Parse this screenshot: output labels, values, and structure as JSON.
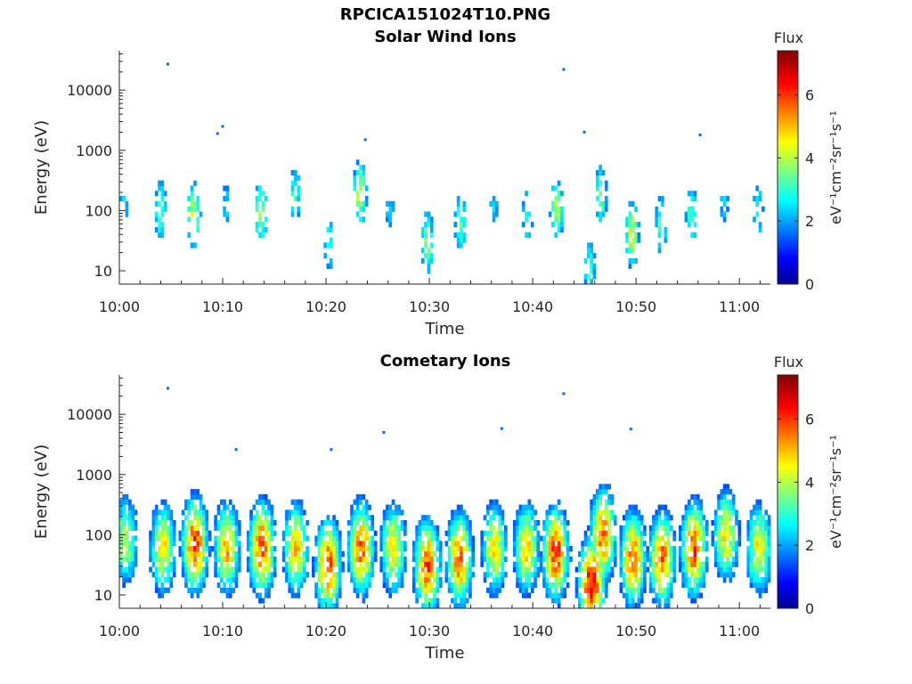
{
  "figure": {
    "title": "RPCICA151024T10.PNG",
    "colorbar_label": "Flux",
    "colorbar_units": "eV⁻¹cm⁻²sr⁻¹s⁻¹",
    "colormap": "jet"
  },
  "chart_data": [
    {
      "type": "heatmap",
      "title": "Solar Wind Ions",
      "xlabel": "Time",
      "ylabel": "Energy (eV)",
      "y_scale": "log",
      "x_range": [
        "10:00",
        "11:03"
      ],
      "y_range": [
        6,
        45000
      ],
      "x_ticks": [
        "10:00",
        "10:10",
        "10:20",
        "10:30",
        "10:40",
        "10:50",
        "11:00"
      ],
      "y_ticks": [
        "10",
        "100",
        "1000",
        "10000"
      ],
      "colorbar": {
        "label": "Flux",
        "range": [
          0,
          7.4
        ],
        "ticks": [
          "0",
          "2",
          "4",
          "6"
        ]
      },
      "bursts": [
        {
          "time_min": 0.5,
          "peak_energy_ev": 150,
          "peak_flux": 2.5
        },
        {
          "time_min": 4.0,
          "peak_energy_ev": 100,
          "peak_flux": 3.5
        },
        {
          "time_min": 7.2,
          "peak_energy_ev": 80,
          "peak_flux": 4.4
        },
        {
          "time_min": 10.3,
          "peak_energy_ev": 120,
          "peak_flux": 2.6
        },
        {
          "time_min": 13.7,
          "peak_energy_ev": 90,
          "peak_flux": 4.0
        },
        {
          "time_min": 17.0,
          "peak_energy_ev": 180,
          "peak_flux": 3.2
        },
        {
          "time_min": 20.3,
          "peak_energy_ev": 30,
          "peak_flux": 3.2
        },
        {
          "time_min": 23.3,
          "peak_energy_ev": 200,
          "peak_flux": 4.4
        },
        {
          "time_min": 26.2,
          "peak_energy_ev": 100,
          "peak_flux": 2.5
        },
        {
          "time_min": 29.8,
          "peak_energy_ev": 30,
          "peak_flux": 3.8
        },
        {
          "time_min": 33.0,
          "peak_energy_ev": 60,
          "peak_flux": 3.4
        },
        {
          "time_min": 36.2,
          "peak_energy_ev": 100,
          "peak_flux": 2.5
        },
        {
          "time_min": 39.5,
          "peak_energy_ev": 80,
          "peak_flux": 3.0
        },
        {
          "time_min": 42.3,
          "peak_energy_ev": 100,
          "peak_flux": 4.0
        },
        {
          "time_min": 45.5,
          "peak_energy_ev": 12,
          "peak_flux": 3.2
        },
        {
          "time_min": 46.6,
          "peak_energy_ev": 180,
          "peak_flux": 3.6
        },
        {
          "time_min": 49.6,
          "peak_energy_ev": 40,
          "peak_flux": 4.4
        },
        {
          "time_min": 52.4,
          "peak_energy_ev": 60,
          "peak_flux": 3.4
        },
        {
          "time_min": 55.4,
          "peak_energy_ev": 80,
          "peak_flux": 3.4
        },
        {
          "time_min": 58.5,
          "peak_energy_ev": 150,
          "peak_flux": 2.6
        },
        {
          "time_min": 61.8,
          "peak_energy_ev": 100,
          "peak_flux": 3.0
        }
      ],
      "isolated_points": [
        {
          "time": "10:04.7",
          "energy_ev": 27000
        },
        {
          "time": "10:09.5",
          "energy_ev": 1900
        },
        {
          "time": "10:10.0",
          "energy_ev": 2500
        },
        {
          "time": "10:23.8",
          "energy_ev": 1500
        },
        {
          "time": "10:43.0",
          "energy_ev": 22000
        },
        {
          "time": "10:45.0",
          "energy_ev": 2000
        },
        {
          "time": "10:56.2",
          "energy_ev": 1800
        }
      ]
    },
    {
      "type": "heatmap",
      "title": "Cometary Ions",
      "xlabel": "Time",
      "ylabel": "Energy (eV)",
      "y_scale": "log",
      "x_range": [
        "10:00",
        "11:03"
      ],
      "y_range": [
        6,
        45000
      ],
      "x_ticks": [
        "10:00",
        "10:10",
        "10:20",
        "10:30",
        "10:40",
        "10:50",
        "11:00"
      ],
      "y_ticks": [
        "10",
        "100",
        "1000",
        "10000"
      ],
      "colorbar": {
        "label": "Flux",
        "range": [
          0,
          7.4
        ],
        "ticks": [
          "0",
          "2",
          "4",
          "6"
        ]
      },
      "bursts": [
        {
          "time_min": 0.6,
          "peak_energy_ev": 80,
          "peak_flux": 4.2
        },
        {
          "time_min": 4.2,
          "peak_energy_ev": 60,
          "peak_flux": 4.8
        },
        {
          "time_min": 7.3,
          "peak_energy_ev": 70,
          "peak_flux": 6.2
        },
        {
          "time_min": 10.4,
          "peak_energy_ev": 60,
          "peak_flux": 5.2
        },
        {
          "time_min": 13.8,
          "peak_energy_ev": 60,
          "peak_flux": 6.0
        },
        {
          "time_min": 17.1,
          "peak_energy_ev": 60,
          "peak_flux": 5.0
        },
        {
          "time_min": 20.2,
          "peak_energy_ev": 30,
          "peak_flux": 6.0
        },
        {
          "time_min": 23.4,
          "peak_energy_ev": 60,
          "peak_flux": 5.8
        },
        {
          "time_min": 26.5,
          "peak_energy_ev": 60,
          "peak_flux": 4.8
        },
        {
          "time_min": 29.8,
          "peak_energy_ev": 30,
          "peak_flux": 6.0
        },
        {
          "time_min": 32.9,
          "peak_energy_ev": 40,
          "peak_flux": 5.8
        },
        {
          "time_min": 36.3,
          "peak_energy_ev": 60,
          "peak_flux": 4.8
        },
        {
          "time_min": 39.4,
          "peak_energy_ev": 60,
          "peak_flux": 5.0
        },
        {
          "time_min": 42.2,
          "peak_energy_ev": 50,
          "peak_flux": 6.2
        },
        {
          "time_min": 45.7,
          "peak_energy_ev": 15,
          "peak_flux": 6.6
        },
        {
          "time_min": 46.8,
          "peak_energy_ev": 100,
          "peak_flux": 5.8
        },
        {
          "time_min": 49.7,
          "peak_energy_ev": 40,
          "peak_flux": 5.8
        },
        {
          "time_min": 52.5,
          "peak_energy_ev": 40,
          "peak_flux": 5.8
        },
        {
          "time_min": 55.6,
          "peak_energy_ev": 60,
          "peak_flux": 6.0
        },
        {
          "time_min": 58.7,
          "peak_energy_ev": 100,
          "peak_flux": 4.8
        },
        {
          "time_min": 61.9,
          "peak_energy_ev": 60,
          "peak_flux": 4.8
        }
      ],
      "isolated_points": [
        {
          "time": "10:04.7",
          "energy_ev": 27000
        },
        {
          "time": "10:11.3",
          "energy_ev": 2600
        },
        {
          "time": "10:20.5",
          "energy_ev": 2600
        },
        {
          "time": "10:25.6",
          "energy_ev": 5000
        },
        {
          "time": "10:37.0",
          "energy_ev": 5800
        },
        {
          "time": "10:43.0",
          "energy_ev": 22000
        },
        {
          "time": "10:49.5",
          "energy_ev": 5700
        }
      ]
    }
  ]
}
